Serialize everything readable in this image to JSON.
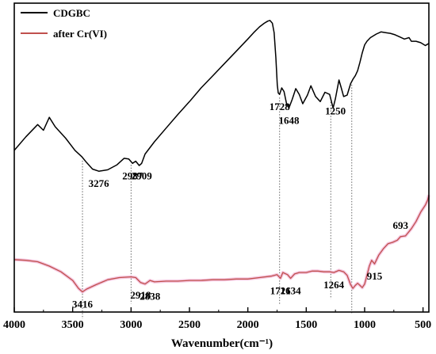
{
  "chart_data": {
    "type": "line",
    "xlabel": "Wavenumber(cm⁻¹)",
    "x_ticks": [
      4000,
      3500,
      3000,
      2500,
      2000,
      1500,
      1000,
      500
    ],
    "xlim": [
      4000,
      450
    ],
    "x_reversed": true,
    "yaxis_ticks": false,
    "legend_position": "top-left",
    "series": [
      {
        "name": "CDGBC",
        "color": "#000000",
        "x": [
          4000,
          3900,
          3800,
          3750,
          3700,
          3650,
          3560,
          3480,
          3420,
          3380,
          3330,
          3276,
          3200,
          3120,
          3060,
          3020,
          2987,
          2960,
          2930,
          2909,
          2880,
          2800,
          2700,
          2600,
          2500,
          2400,
          2300,
          2200,
          2100,
          2000,
          1950,
          1900,
          1860,
          1830,
          1810,
          1790,
          1775,
          1760,
          1748,
          1740,
          1728,
          1710,
          1690,
          1670,
          1648,
          1620,
          1590,
          1560,
          1530,
          1490,
          1460,
          1420,
          1380,
          1340,
          1300,
          1270,
          1250,
          1220,
          1200,
          1180,
          1150,
          1120,
          1100,
          1080,
          1060,
          1040,
          1020,
          1000,
          980,
          950,
          900,
          860,
          820,
          780,
          740,
          700,
          660,
          620,
          600,
          560,
          520,
          480,
          450
        ],
        "y": [
          14.5,
          16.4,
          18.1,
          17.3,
          19.1,
          17.8,
          16.2,
          14.5,
          13.6,
          12.8,
          11.9,
          11.6,
          11.8,
          12.5,
          13.4,
          13.3,
          12.7,
          13.0,
          12.4,
          12.7,
          14.0,
          15.7,
          17.6,
          19.5,
          21.3,
          23.2,
          24.9,
          26.6,
          28.3,
          30.0,
          30.9,
          31.7,
          32.2,
          32.5,
          32.6,
          32.2,
          30.9,
          27.4,
          23.6,
          22.5,
          22.3,
          23.2,
          22.7,
          21.1,
          20.4,
          21.6,
          23.1,
          22.3,
          21.0,
          22.2,
          23.5,
          22.0,
          21.3,
          22.6,
          22.3,
          20.4,
          21.7,
          24.3,
          23.2,
          22.0,
          22.2,
          23.8,
          24.4,
          24.9,
          25.6,
          26.8,
          28.1,
          29.2,
          29.7,
          30.2,
          30.7,
          31.0,
          30.9,
          30.8,
          30.6,
          30.3,
          30.0,
          30.2,
          29.7,
          29.7,
          29.5,
          29.1,
          29.4
        ]
      },
      {
        "name": "after Cr(VI)",
        "color": "#c0504d",
        "x": [
          4000,
          3900,
          3800,
          3700,
          3600,
          3500,
          3450,
          3416,
          3380,
          3300,
          3200,
          3100,
          3000,
          2960,
          2918,
          2880,
          2838,
          2800,
          2700,
          2600,
          2500,
          2400,
          2300,
          2200,
          2100,
          2000,
          1900,
          1800,
          1750,
          1721,
          1700,
          1660,
          1634,
          1600,
          1560,
          1500,
          1450,
          1400,
          1350,
          1300,
          1264,
          1220,
          1180,
          1150,
          1120,
          1100,
          1080,
          1060,
          1040,
          1020,
          1000,
          980,
          960,
          940,
          915,
          880,
          840,
          800,
          760,
          720,
          693,
          650,
          600,
          560,
          520,
          480,
          460,
          450
        ],
        "y": [
          -0.7,
          -0.8,
          -1.0,
          -1.6,
          -2.4,
          -3.6,
          -4.7,
          -5.2,
          -4.8,
          -4.2,
          -3.5,
          -3.2,
          -3.1,
          -3.2,
          -3.9,
          -4.1,
          -3.6,
          -3.8,
          -3.7,
          -3.7,
          -3.6,
          -3.6,
          -3.5,
          -3.5,
          -3.4,
          -3.4,
          -3.2,
          -3.0,
          -2.8,
          -3.3,
          -2.5,
          -2.8,
          -3.3,
          -2.7,
          -2.5,
          -2.5,
          -2.3,
          -2.3,
          -2.4,
          -2.4,
          -2.5,
          -2.2,
          -2.4,
          -2.9,
          -4.2,
          -4.7,
          -4.3,
          -4.0,
          -4.3,
          -4.6,
          -4.1,
          -2.9,
          -1.6,
          -0.8,
          -1.3,
          -0.1,
          0.8,
          1.5,
          1.7,
          2.0,
          2.5,
          2.6,
          3.6,
          4.6,
          5.9,
          6.9,
          7.6,
          8.3
        ]
      }
    ],
    "annotations": [
      {
        "label": "3276",
        "x": 3276,
        "y": 11.6,
        "series": "CDGBC",
        "pos": "below"
      },
      {
        "label": "2987",
        "x": 2987,
        "y": 12.7,
        "series": "CDGBC",
        "pos": "below"
      },
      {
        "label": "2909",
        "x": 2909,
        "y": 12.7,
        "series": "CDGBC",
        "pos": "below"
      },
      {
        "label": "1728",
        "x": 1728,
        "y": 22.3,
        "series": "CDGBC",
        "pos": "below"
      },
      {
        "label": "1648",
        "x": 1648,
        "y": 20.4,
        "series": "CDGBC",
        "pos": "below"
      },
      {
        "label": "1250",
        "x": 1250,
        "y": 21.7,
        "series": "CDGBC",
        "pos": "below"
      },
      {
        "label": "3416",
        "x": 3416,
        "y": -5.2,
        "series": "after Cr(VI)",
        "pos": "below"
      },
      {
        "label": "2918",
        "x": 2918,
        "y": -3.9,
        "series": "after Cr(VI)",
        "pos": "below"
      },
      {
        "label": "2838",
        "x": 2838,
        "y": -4.1,
        "series": "after Cr(VI)",
        "pos": "below"
      },
      {
        "label": "1721",
        "x": 1721,
        "y": -3.3,
        "series": "after Cr(VI)",
        "pos": "below"
      },
      {
        "label": "1634",
        "x": 1634,
        "y": -3.3,
        "series": "after Cr(VI)",
        "pos": "below"
      },
      {
        "label": "1264",
        "x": 1264,
        "y": -2.5,
        "series": "after Cr(VI)",
        "pos": "below"
      },
      {
        "label": "915",
        "x": 915,
        "y": -1.3,
        "series": "after Cr(VI)",
        "pos": "below"
      },
      {
        "label": "693",
        "x": 693,
        "y": 2.5,
        "series": "after Cr(VI)",
        "pos": "above"
      }
    ],
    "reference_lines": [
      3416,
      3000,
      1728,
      1290,
      1110
    ]
  }
}
